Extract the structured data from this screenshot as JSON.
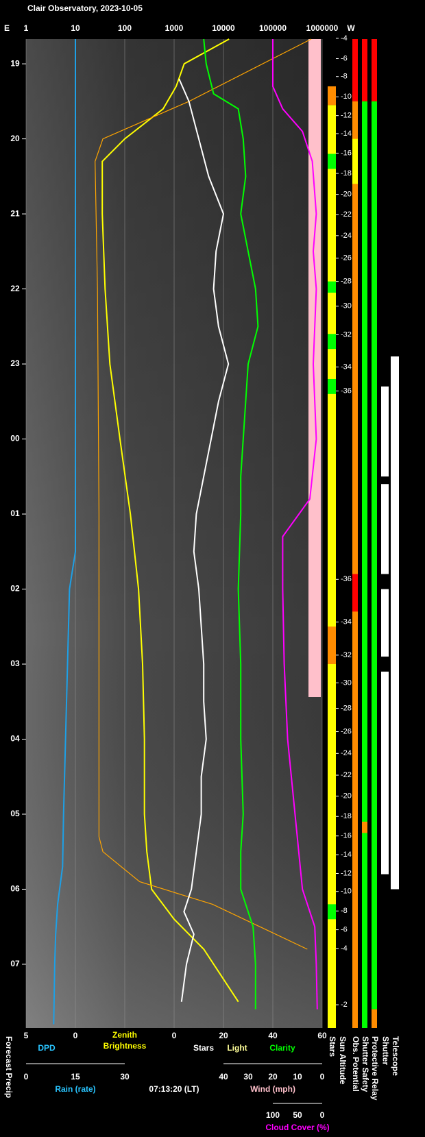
{
  "chart_data": {
    "type": "observatory",
    "title": "Clair Observatory, 2023-10-05",
    "timestamp": "07:13:20 (LT)",
    "time_axis": {
      "ylim": [
        18.67,
        31.85
      ],
      "yticks": [
        19,
        20,
        21,
        22,
        23,
        {
          "value": 24,
          "label": "00"
        },
        {
          "value": 25,
          "label": "01"
        },
        {
          "value": 26,
          "label": "02"
        },
        {
          "value": 27,
          "label": "03"
        },
        {
          "value": 28,
          "label": "04"
        },
        {
          "value": 29,
          "label": "05"
        },
        {
          "value": 30,
          "label": "06"
        },
        {
          "value": 31,
          "label": "07"
        }
      ]
    },
    "brightness_axis": {
      "scale": "log",
      "xlim": [
        1,
        1000000
      ],
      "xticks": [
        1,
        10,
        100,
        1000,
        10000,
        100000,
        1000000
      ],
      "grid": true,
      "left_label": "E",
      "right_label": "W"
    },
    "dpd_axis": {
      "xlim": [
        5,
        0
      ],
      "xticks": [
        5,
        0
      ]
    },
    "stars_axis": {
      "xlim": [
        0,
        60
      ],
      "xticks": [
        0,
        20,
        40,
        60
      ]
    },
    "rain_axis": {
      "name": "Rain (rate)",
      "color": "#29c5ff",
      "xlim": [
        0,
        30
      ],
      "xticks": [
        0,
        15,
        30
      ]
    },
    "wind_axis": {
      "name": "Wind (mph)",
      "color": "#ffc0cb",
      "xlim": [
        40,
        0
      ],
      "xticks": [
        40,
        30,
        20,
        10,
        0
      ]
    },
    "cloud_axis": {
      "name": "Cloud Cover (%)",
      "color": "#ff00ff",
      "xlim": [
        100,
        0
      ],
      "xticks": [
        100,
        50,
        0
      ]
    },
    "series": [
      {
        "name": "DPD",
        "color": "#1ea0e6",
        "label_color": "#29c5ff",
        "axis": "dpd_axis",
        "times": [
          18.67,
          20,
          22,
          24,
          25.5,
          26,
          27,
          28,
          29,
          29.7,
          30.2,
          30.6,
          31.0,
          31.8
        ],
        "values": [
          0,
          0,
          0,
          0,
          0,
          0.6,
          0.8,
          1.0,
          1.2,
          1.3,
          1.8,
          2.0,
          2.1,
          2.2
        ]
      },
      {
        "name": "Zenith Brightness",
        "color": "#ffff00",
        "axis": "brightness_axis",
        "times": [
          18.67,
          19.0,
          19.3,
          19.6,
          20.0,
          20.3,
          21,
          22,
          23,
          24,
          25,
          26,
          27,
          28,
          29,
          29.5,
          30.0,
          30.4,
          30.8,
          31.5
        ],
        "values": [
          13000,
          1600,
          1100,
          600,
          100,
          35,
          35,
          40,
          50,
          80,
          130,
          190,
          230,
          250,
          250,
          280,
          350,
          1000,
          4000,
          20000
        ]
      },
      {
        "name": "Light",
        "color": "#ffa500",
        "label_color": "#ffff99",
        "axis": "brightness_axis",
        "times": [
          18.67,
          19.5,
          20.0,
          20.3,
          22,
          25,
          29.3,
          29.5,
          29.9,
          30.2,
          30.8
        ],
        "values": [
          600000,
          2000,
          36,
          25,
          28,
          30,
          30,
          36,
          200,
          6000,
          500000
        ]
      },
      {
        "name": "Stars",
        "color": "#ffffff",
        "axis": "stars_axis",
        "times": [
          19.2,
          19.5,
          20,
          20.5,
          21,
          21.5,
          22,
          22.5,
          23,
          23.5,
          24,
          24.5,
          25,
          25.5,
          26,
          26.5,
          27,
          27.5,
          28,
          28.5,
          29,
          29.5,
          30,
          30.3,
          30.6,
          31,
          31.5
        ],
        "values": [
          2,
          6,
          10,
          14,
          20,
          17,
          16,
          18,
          22,
          18,
          15,
          12,
          9,
          8,
          10,
          11,
          12,
          12,
          13,
          11,
          11,
          9,
          7,
          4,
          8,
          5,
          3
        ]
      },
      {
        "name": "Clarity",
        "color": "#00ff00",
        "axis": "stars_axis",
        "times": [
          18.67,
          19.0,
          19.4,
          19.6,
          20,
          20.5,
          21,
          21.5,
          22,
          22.5,
          23,
          23.5,
          24,
          24.5,
          25,
          26,
          27,
          28,
          29,
          29.5,
          30,
          30.5,
          31,
          31.6
        ],
        "values": [
          12,
          13,
          16,
          26,
          28,
          29,
          27,
          30,
          33,
          34,
          30,
          29,
          28,
          27,
          27,
          26,
          27,
          27,
          28,
          27,
          27,
          32,
          33,
          33
        ]
      },
      {
        "color": "#ff00ff",
        "axis": "cloud_axis",
        "times": [
          18.67,
          19.3,
          19.6,
          19.9,
          20.3,
          21,
          21.5,
          22,
          23,
          24,
          24.8,
          25.3,
          26,
          27,
          28,
          29,
          30,
          30.5,
          31,
          31.6
        ],
        "values": [
          100,
          100,
          80,
          40,
          20,
          12,
          18,
          12,
          18,
          12,
          25,
          80,
          80,
          77,
          70,
          55,
          40,
          15,
          12,
          10
        ]
      }
    ],
    "sun_altitude": {
      "name": "Sun Altitude",
      "times": [
        18.66,
        18.93,
        19.17,
        19.44,
        19.69,
        19.93,
        20.19,
        20.46,
        20.74,
        21.01,
        21.29,
        21.59,
        21.9,
        22.23,
        22.61,
        23.04,
        23.36,
        25.87,
        26.44,
        26.88,
        27.25,
        27.59,
        27.9,
        28.19,
        28.48,
        28.76,
        29.03,
        29.29,
        29.54,
        29.79,
        30.03,
        30.29,
        30.54,
        30.79,
        31.54
      ],
      "values": [
        -4,
        -6,
        -8,
        -10,
        -12,
        -14,
        -16,
        -18,
        -20,
        -22,
        -24,
        -26,
        -28,
        -30,
        -32,
        -34,
        -36,
        -36,
        -34,
        -32,
        -30,
        -28,
        -26,
        -24,
        -22,
        -20,
        -18,
        -16,
        -14,
        -12,
        -10,
        -8,
        -6,
        -4,
        -2
      ]
    },
    "forecast_precip": {
      "name": "Forecast Precip"
    },
    "status_columns": [
      {
        "name": "Stars",
        "segments": [
          {
            "from": 19.3,
            "to": 19.55,
            "color": "#ff8c00"
          },
          {
            "from": 19.55,
            "to": 31.85,
            "color": "#ffff00"
          },
          {
            "from": 20.2,
            "to": 20.4,
            "color": "#00ff00"
          },
          {
            "from": 21.9,
            "to": 22.05,
            "color": "#00ff00"
          },
          {
            "from": 22.6,
            "to": 22.8,
            "color": "#00ff00"
          },
          {
            "from": 23.2,
            "to": 23.4,
            "color": "#00ff00"
          },
          {
            "from": 26.5,
            "to": 27.0,
            "color": "#ff8c00"
          },
          {
            "from": 30.2,
            "to": 30.4,
            "color": "#00ff00"
          }
        ]
      },
      {
        "name": "Obs. Potential",
        "segments": [
          {
            "from": 18.67,
            "to": 19.5,
            "color": "#ff0000"
          },
          {
            "from": 19.5,
            "to": 31.85,
            "color": "#ff8c00"
          },
          {
            "from": 20.0,
            "to": 20.6,
            "color": "#ffff00"
          },
          {
            "from": 25.8,
            "to": 26.3,
            "color": "#ff0000"
          }
        ]
      },
      {
        "name": "Shutter Safety",
        "segments": [
          {
            "from": 18.67,
            "to": 19.5,
            "color": "#ff0000"
          },
          {
            "from": 19.5,
            "to": 31.85,
            "color": "#00ff00"
          },
          {
            "from": 29.1,
            "to": 29.25,
            "color": "#ff8c00"
          }
        ]
      },
      {
        "name": "Protective Relay",
        "segments": [
          {
            "from": 18.67,
            "to": 19.5,
            "color": "#ff0000"
          },
          {
            "from": 19.5,
            "to": 31.6,
            "color": "#00ff00"
          },
          {
            "from": 31.6,
            "to": 31.85,
            "color": "#ff8c00"
          }
        ]
      },
      {
        "name": "Shutter",
        "segments": [
          {
            "from": 23.3,
            "to": 24.5,
            "color": "#ffffff"
          },
          {
            "from": 24.6,
            "to": 25.8,
            "color": "#ffffff"
          },
          {
            "from": 26.0,
            "to": 26.9,
            "color": "#ffffff"
          },
          {
            "from": 27.1,
            "to": 29.8,
            "color": "#ffffff"
          }
        ]
      },
      {
        "name": "Telescope",
        "segments": [
          {
            "from": 22.9,
            "to": 30.0,
            "color": "#ffffff"
          }
        ]
      }
    ]
  }
}
